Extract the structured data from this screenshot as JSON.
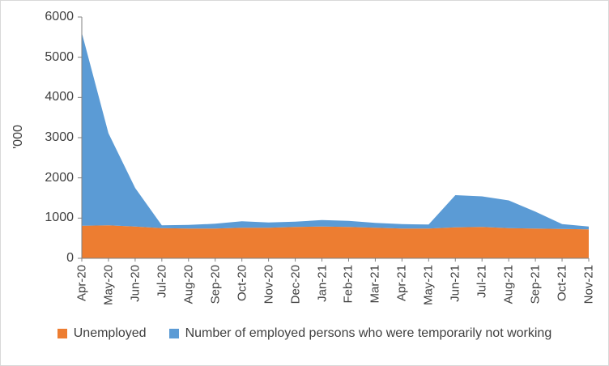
{
  "chart_data": {
    "type": "area",
    "stacked": true,
    "title": "",
    "xlabel": "",
    "ylabel": "'000",
    "ylim": [
      0,
      6000
    ],
    "y_ticks": [
      0,
      1000,
      2000,
      3000,
      4000,
      5000,
      6000
    ],
    "grid": false,
    "legend_position": "bottom",
    "categories": [
      "Apr-20",
      "May-20",
      "Jun-20",
      "Jul-20",
      "Aug-20",
      "Sep-20",
      "Oct-20",
      "Nov-20",
      "Dec-20",
      "Jan-21",
      "Feb-21",
      "Mar-21",
      "Apr-21",
      "May-21",
      "Jun-21",
      "Jul-21",
      "Aug-21",
      "Sep-21",
      "Oct-21",
      "Nov-21"
    ],
    "series": [
      {
        "name": "Unemployed",
        "color": "#ED7D31",
        "values": [
          810,
          820,
          790,
          750,
          740,
          740,
          760,
          760,
          780,
          790,
          780,
          760,
          740,
          740,
          770,
          780,
          750,
          740,
          730,
          720
        ]
      },
      {
        "name": "Number of employed persons who were temporarily not working",
        "color": "#5B9BD5",
        "values": [
          4800,
          2290,
          960,
          70,
          90,
          120,
          160,
          130,
          130,
          160,
          150,
          120,
          110,
          100,
          800,
          760,
          690,
          420,
          120,
          70
        ]
      }
    ]
  },
  "colors": {
    "axis": "#808080",
    "text": "#404040",
    "border": "#D9D9D9",
    "background": "#FFFFFF"
  }
}
